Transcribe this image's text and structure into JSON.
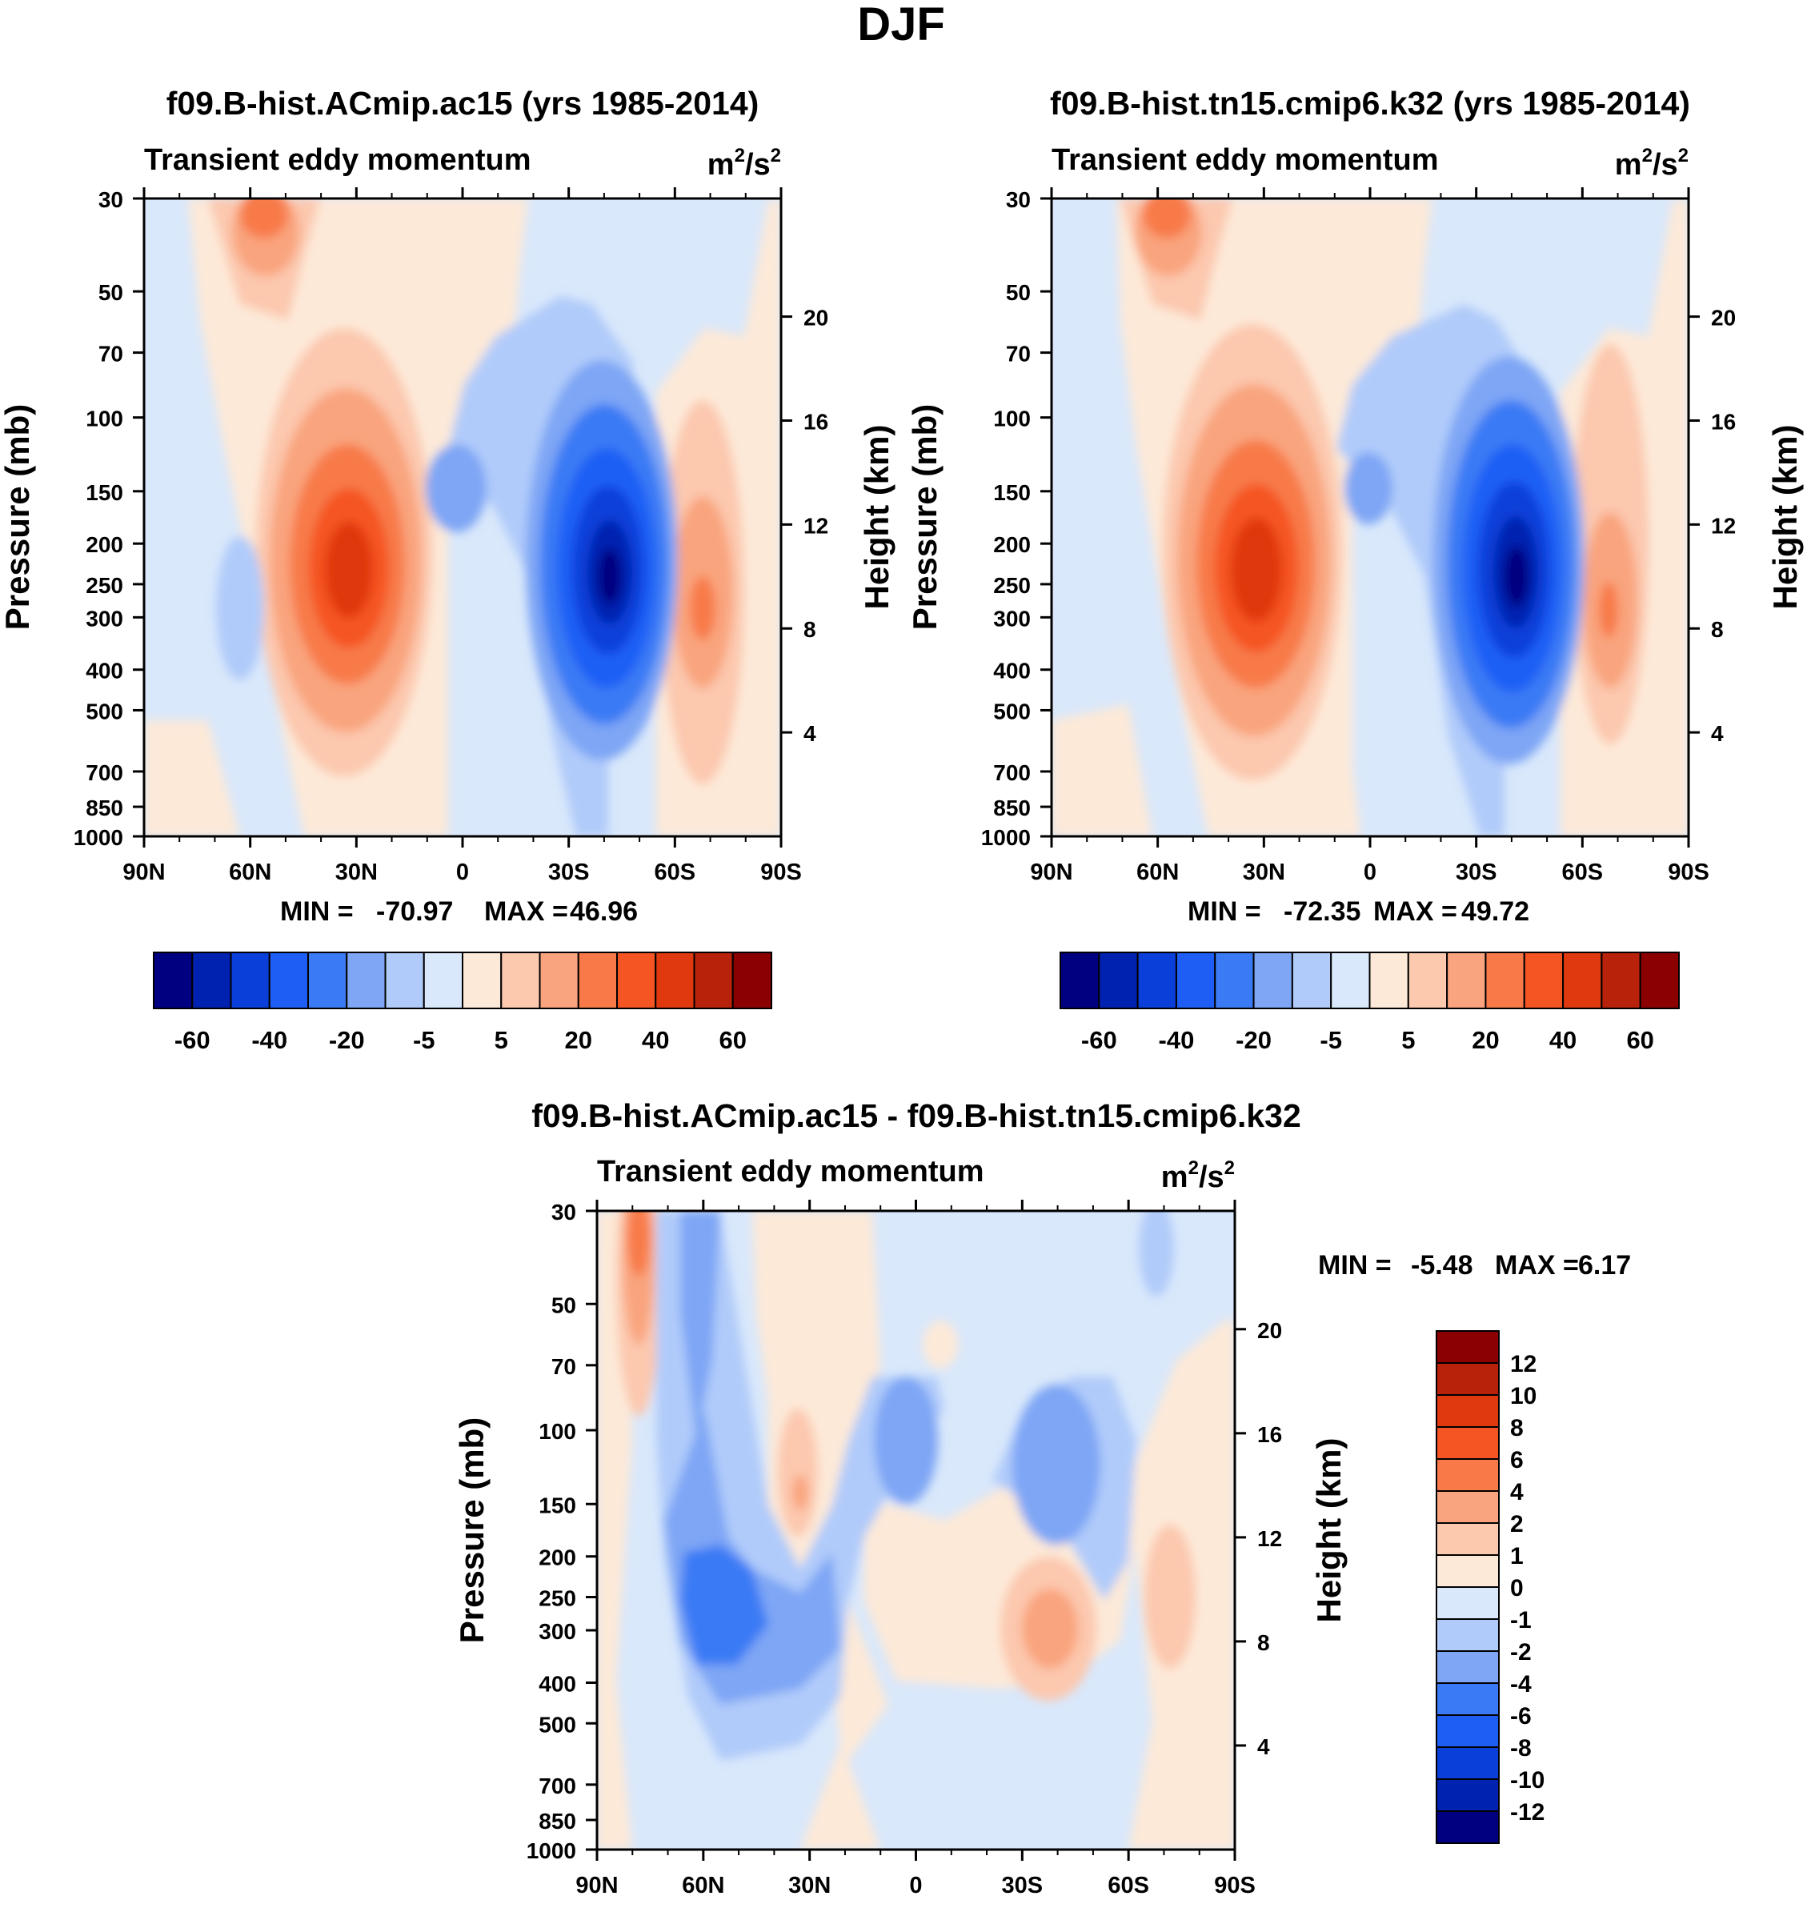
{
  "figure": {
    "title": "DJF",
    "panel_a": {
      "title": "f09.B-hist.ACmip.ac15 (yrs 1985-2014)",
      "subtitle": "Transient eddy momentum",
      "units_base": "m",
      "units_exp": "2",
      "units_mid": "/s",
      "units_exp2": "2",
      "ylabel": "Pressure (mb)",
      "ylabel_right": "Height (km)",
      "min_label": "MIN =",
      "min_value": "-70.97",
      "max_label": "MAX =",
      "max_value": "46.96"
    },
    "panel_b": {
      "title": "f09.B-hist.tn15.cmip6.k32 (yrs 1985-2014)",
      "subtitle": "Transient eddy momentum",
      "units_base": "m",
      "units_exp": "2",
      "units_mid": "/s",
      "units_exp2": "2",
      "ylabel": "Pressure (mb)",
      "ylabel_right": "Height (km)",
      "min_label": "MIN =",
      "min_value": "-72.35",
      "max_label": "MAX =",
      "max_value": "49.72"
    },
    "panel_c": {
      "title": "f09.B-hist.ACmip.ac15 - f09.B-hist.tn15.cmip6.k32",
      "subtitle": "Transient eddy momentum",
      "units_base": "m",
      "units_exp": "2",
      "units_mid": "/s",
      "units_exp2": "2",
      "ylabel": "Pressure (mb)",
      "ylabel_right": "Height (km)",
      "min_label": "MIN =",
      "min_value": "-5.48",
      "max_label": "MAX =",
      "max_value": "6.17"
    }
  },
  "chart_data": [
    {
      "type": "heatmap",
      "title": "f09.B-hist.ACmip.ac15 (yrs 1985-2014)",
      "subtitle": "Transient eddy momentum",
      "units": "m2/s2",
      "xlabel": "",
      "ylabel": "Pressure (mb)",
      "ylabel_right": "Height (km)",
      "x_ticks": [
        "90N",
        "60N",
        "30N",
        "0",
        "30S",
        "60S",
        "90S"
      ],
      "y_ticks": [
        30,
        50,
        70,
        100,
        150,
        200,
        250,
        300,
        400,
        500,
        700,
        850,
        1000
      ],
      "y_right_ticks": [
        4,
        8,
        12,
        16,
        20
      ],
      "ylim": [
        1000,
        30
      ],
      "min": -70.97,
      "max": 46.96,
      "colorbar_labels": [
        "-60",
        "-40",
        "-20",
        "-5",
        "5",
        "20",
        "40",
        "60"
      ],
      "features": [
        {
          "sign": "positive",
          "lat": 30,
          "plev": 250,
          "value": 45
        },
        {
          "sign": "negative",
          "lat": -42,
          "plev": 250,
          "value": -70
        },
        {
          "sign": "positive",
          "lat": -68,
          "plev": 300,
          "value": 35
        },
        {
          "sign": "positive",
          "lat": 58,
          "plev": 30,
          "value": 22
        },
        {
          "sign": "negative",
          "lat": 8,
          "plev": 150,
          "value": -12
        },
        {
          "sign": "negative",
          "lat": 62,
          "plev": 280,
          "value": -8
        }
      ]
    },
    {
      "type": "heatmap",
      "title": "f09.B-hist.tn15.cmip6.k32 (yrs 1985-2014)",
      "subtitle": "Transient eddy momentum",
      "units": "m2/s2",
      "xlabel": "",
      "ylabel": "Pressure (mb)",
      "ylabel_right": "Height (km)",
      "x_ticks": [
        "90N",
        "60N",
        "30N",
        "0",
        "30S",
        "60S",
        "90S"
      ],
      "y_ticks": [
        30,
        50,
        70,
        100,
        150,
        200,
        250,
        300,
        400,
        500,
        700,
        850,
        1000
      ],
      "y_right_ticks": [
        4,
        8,
        12,
        16,
        20
      ],
      "ylim": [
        1000,
        30
      ],
      "min": -72.35,
      "max": 49.72,
      "colorbar_labels": [
        "-60",
        "-40",
        "-20",
        "-5",
        "5",
        "20",
        "40",
        "60"
      ],
      "features": [
        {
          "sign": "positive",
          "lat": 31,
          "plev": 250,
          "value": 48
        },
        {
          "sign": "negative",
          "lat": -42,
          "plev": 250,
          "value": -72
        },
        {
          "sign": "positive",
          "lat": -67,
          "plev": 300,
          "value": 33
        },
        {
          "sign": "positive",
          "lat": 58,
          "plev": 30,
          "value": 22
        },
        {
          "sign": "negative",
          "lat": 2,
          "plev": 150,
          "value": -12
        }
      ]
    },
    {
      "type": "heatmap",
      "title": "f09.B-hist.ACmip.ac15 - f09.B-hist.tn15.cmip6.k32",
      "subtitle": "Transient eddy momentum",
      "units": "m2/s2",
      "xlabel": "",
      "ylabel": "Pressure (mb)",
      "ylabel_right": "Height (km)",
      "x_ticks": [
        "90N",
        "60N",
        "30N",
        "0",
        "30S",
        "60S",
        "90S"
      ],
      "y_ticks": [
        30,
        50,
        70,
        100,
        150,
        200,
        250,
        300,
        400,
        500,
        700,
        850,
        1000
      ],
      "y_right_ticks": [
        4,
        8,
        12,
        16,
        20
      ],
      "ylim": [
        1000,
        30
      ],
      "min": -5.48,
      "max": 6.17,
      "colorbar_labels": [
        "12",
        "10",
        "8",
        "6",
        "4",
        "2",
        "1",
        "0",
        "-1",
        "-2",
        "-4",
        "-6",
        "-8",
        "-10",
        "-12"
      ],
      "features": [
        {
          "sign": "positive",
          "lat": 77,
          "plev": 40,
          "value": 6
        },
        {
          "sign": "negative",
          "lat": 52,
          "plev": 280,
          "value": -5.5
        },
        {
          "sign": "negative",
          "lat": 60,
          "plev": 40,
          "value": -3
        },
        {
          "sign": "positive",
          "lat": 32,
          "plev": 150,
          "value": 3
        },
        {
          "sign": "negative",
          "lat": 0,
          "plev": 110,
          "value": -3
        },
        {
          "sign": "negative",
          "lat": -40,
          "plev": 140,
          "value": -3.5
        },
        {
          "sign": "positive",
          "lat": -38,
          "plev": 290,
          "value": 3
        },
        {
          "sign": "positive",
          "lat": -70,
          "plev": 250,
          "value": 1.5
        }
      ]
    }
  ],
  "colorbar_ab": {
    "colors": [
      "#000080",
      "#0022b0",
      "#0a3fd9",
      "#1e5ef5",
      "#3b7af5",
      "#7ea6f5",
      "#b0cbfa",
      "#d9e8fb",
      "#fde9d8",
      "#fcc8ae",
      "#f9a47e",
      "#f87a48",
      "#f55523",
      "#e0380f",
      "#b8220b",
      "#8b0000"
    ],
    "labels": [
      "-60",
      "-40",
      "-20",
      "-5",
      "5",
      "20",
      "40",
      "60"
    ]
  },
  "colorbar_c": {
    "colors": [
      "#8b0000",
      "#b8220b",
      "#e0380f",
      "#f55523",
      "#f87a48",
      "#f9a47e",
      "#fcc8ae",
      "#fde9d8",
      "#d9e8fb",
      "#b0cbfa",
      "#7ea6f5",
      "#3b7af5",
      "#1e5ef5",
      "#0a3fd9",
      "#0022b0",
      "#000080"
    ],
    "labels": [
      "12",
      "10",
      "8",
      "6",
      "4",
      "2",
      "1",
      "0",
      "-1",
      "-2",
      "-4",
      "-6",
      "-8",
      "-10",
      "-12"
    ]
  }
}
